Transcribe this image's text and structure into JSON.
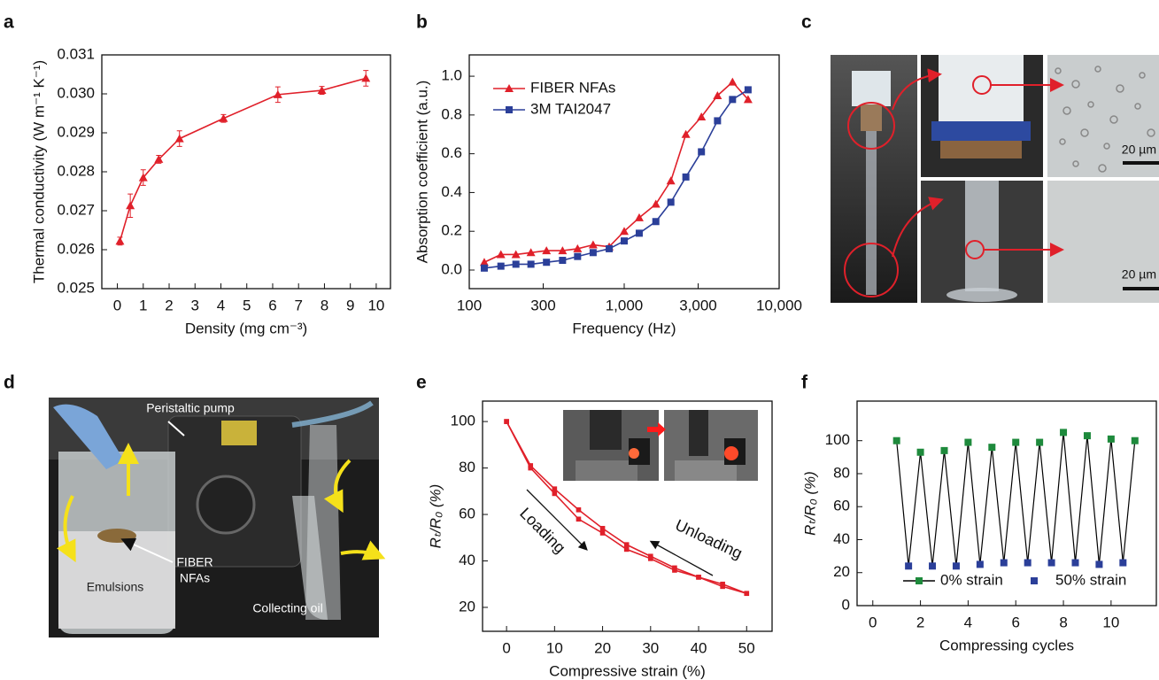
{
  "panel_labels": [
    "a",
    "b",
    "c",
    "d",
    "e",
    "f"
  ],
  "chart_data": [
    {
      "type": "line",
      "xlabel": "Density (mg cm⁻³)",
      "ylabel": "Thermal conductivity (W m⁻¹ K⁻¹)",
      "x": [
        0.1,
        0.5,
        1.0,
        1.6,
        2.4,
        4.1,
        6.2,
        7.9,
        9.6
      ],
      "series": [
        {
          "color": "#e0202a",
          "marker": "triangle",
          "values": [
            0.02622,
            0.02713,
            0.02785,
            0.02832,
            0.02885,
            0.02937,
            0.02998,
            0.03009,
            0.0304
          ],
          "errors": [
            0.0001,
            0.0003,
            0.0002,
            0.0001,
            0.0002,
            0.0001,
            0.0002,
            0.0001,
            0.0002
          ]
        }
      ],
      "xlim": [
        -0.6,
        10.55
      ],
      "xticks": [
        0,
        1,
        2,
        3,
        4,
        5,
        6,
        7,
        8,
        9,
        10
      ],
      "ylim": [
        0.025,
        0.031
      ],
      "yticks": [
        0.025,
        0.026,
        0.027,
        0.028,
        0.029,
        {
          "value": 0.03,
          "label": "0.030"
        },
        0.031
      ]
    },
    {
      "type": "line",
      "xscale": "log",
      "legend": "upper left",
      "xlabel": "Frequency (Hz)",
      "ylabel": "Absorption coefficient (a.u.)",
      "x": [
        125,
        160,
        200,
        250,
        315,
        400,
        500,
        630,
        800,
        1000,
        1250,
        1600,
        2000,
        2500,
        3150,
        4000,
        5000,
        6300
      ],
      "series": [
        {
          "name": "FIBER NFAs",
          "color": "#e0202a",
          "marker": "triangle",
          "values": [
            0.04,
            0.08,
            0.08,
            0.09,
            0.1,
            0.1,
            0.11,
            0.13,
            0.12,
            0.2,
            0.27,
            0.34,
            0.46,
            0.7,
            0.79,
            0.9,
            0.97,
            0.88
          ]
        },
        {
          "name": "3M TAI2047",
          "color": "#2b3f99",
          "marker": "square",
          "values": [
            0.01,
            0.02,
            0.03,
            0.03,
            0.04,
            0.05,
            0.07,
            0.09,
            0.11,
            0.15,
            0.19,
            0.25,
            0.35,
            0.48,
            0.61,
            0.77,
            0.88,
            0.93
          ]
        }
      ],
      "xlim": [
        100,
        10000
      ],
      "xticks": [
        100,
        300,
        {
          "value": 1000,
          "label": "1,000"
        },
        {
          "value": 3000,
          "label": "3,000"
        },
        {
          "value": 10000,
          "label": "10,000"
        }
      ],
      "ylim": [
        -0.096,
        1.11
      ],
      "yticks": [
        {
          "value": 0,
          "label": "0.0"
        },
        0.2,
        0.4,
        0.6,
        0.8,
        {
          "value": 1,
          "label": "1.0"
        }
      ]
    },
    {
      "type": "line",
      "xlabel": "Compressive strain (%)",
      "ylabel": "Rₜ/R₀ (%)",
      "annotations": [
        "Loading",
        "Unloading"
      ],
      "x": [
        0,
        5,
        10,
        15,
        20,
        25,
        30,
        35,
        40,
        45,
        50
      ],
      "series": [
        {
          "color": "#e0202a",
          "marker": "square",
          "values": [
            100,
            81,
            71,
            62,
            54,
            47,
            42,
            37,
            33,
            30,
            26
          ]
        },
        {
          "color": "#e0202a",
          "marker": "square",
          "values": [
            100,
            80,
            69,
            58,
            52,
            45,
            41,
            36,
            33,
            29,
            26
          ]
        }
      ],
      "xlim": [
        -5,
        55.3
      ],
      "xticks": [
        0,
        10,
        20,
        30,
        40,
        50
      ],
      "ylim": [
        9.7,
        108.8
      ],
      "yticks": [
        20,
        40,
        60,
        80,
        100
      ]
    },
    {
      "type": "scatter",
      "connector_color": "#000000",
      "legend": "lower center",
      "xlabel": "Compressing cycles",
      "ylabel": "Rₜ/R₀ (%)",
      "series": [
        {
          "name": "0% strain",
          "color": "#1e8a3c",
          "marker": "square",
          "x": [
            1,
            2,
            3,
            4,
            5,
            6,
            7,
            8,
            9,
            10,
            11
          ],
          "values": [
            100,
            93,
            94,
            99,
            96,
            99,
            99,
            105,
            103,
            101,
            100
          ]
        },
        {
          "name": "50% strain",
          "color": "#2b3f99",
          "marker": "square",
          "x": [
            1.5,
            2.5,
            3.5,
            4.5,
            5.5,
            6.5,
            7.5,
            8.5,
            9.5,
            10.5
          ],
          "values": [
            24,
            24,
            24,
            25,
            26,
            26,
            26,
            26,
            25,
            26
          ]
        }
      ],
      "xlim": [
        -0.66,
        11.9
      ],
      "xticks": [
        0,
        2,
        4,
        6,
        8,
        10
      ],
      "ylim": [
        0,
        124
      ],
      "yticks": [
        0,
        20,
        40,
        60,
        80,
        100
      ]
    }
  ],
  "photo_c": {
    "scale_bars": [
      "20 µm",
      "20 µm"
    ]
  },
  "photo_d": {
    "labels": [
      "Peristaltic pump",
      "FIBER",
      "NFAs",
      "Emulsions",
      "Collecting oil"
    ]
  }
}
